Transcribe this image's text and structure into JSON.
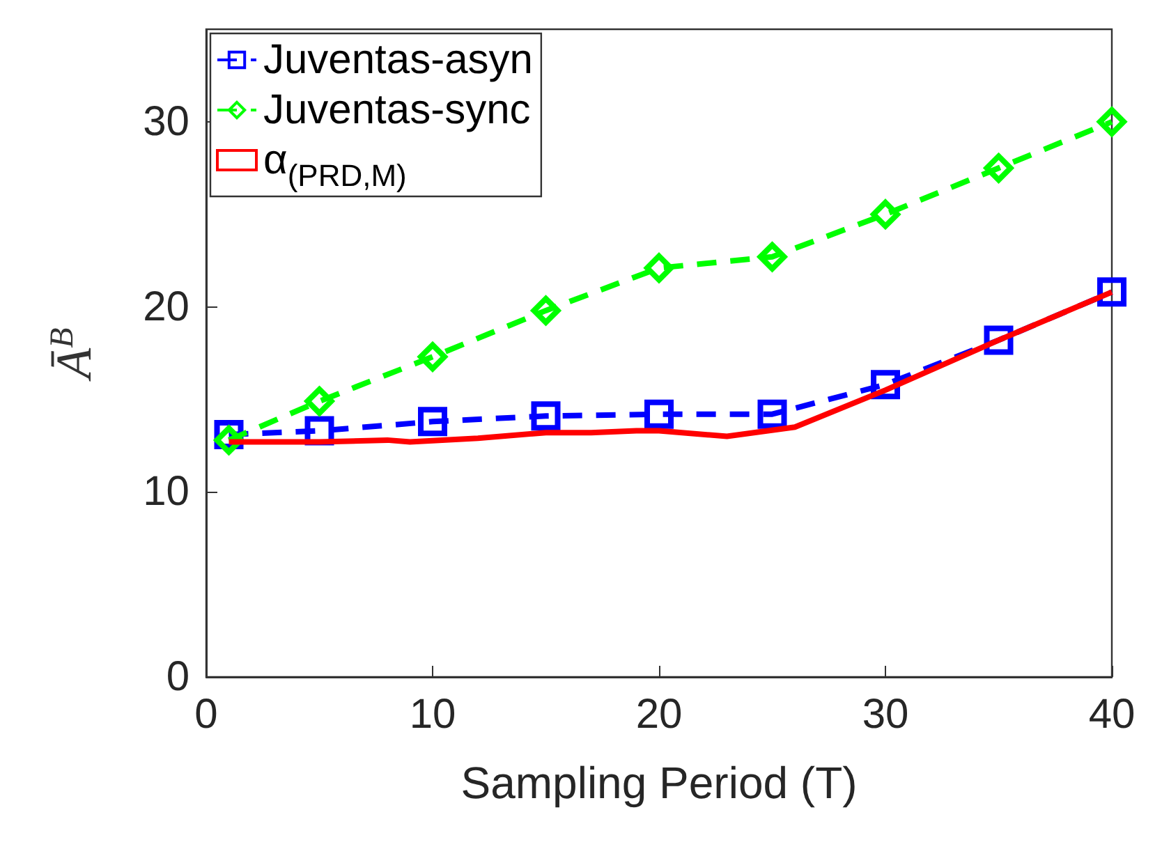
{
  "chart_data": {
    "type": "line",
    "xlabel": "Sampling Period (T)",
    "ylabel": "Ā$^{B}$",
    "xlim": [
      0,
      40
    ],
    "xticks": [
      0,
      10,
      20,
      30,
      40
    ],
    "ylim": [
      0,
      35
    ],
    "yticks": [
      0,
      10,
      20,
      30
    ],
    "grid": false,
    "legend": "top left",
    "series": [
      {
        "name": "Juventas-asyn",
        "color": "#0000ff",
        "marker": "square",
        "line_style": "dashed",
        "x": [
          1,
          5,
          10,
          15,
          20,
          25,
          30,
          35,
          40
        ],
        "values": [
          13.1,
          13.3,
          13.8,
          14.1,
          14.2,
          14.2,
          15.8,
          18.2,
          20.8
        ]
      },
      {
        "name": "Juventas-sync",
        "color": "#00ff00",
        "marker": "diamond",
        "line_style": "dashed",
        "x": [
          1,
          5,
          10,
          15,
          20,
          25,
          30,
          35,
          40
        ],
        "values": [
          12.8,
          14.9,
          17.3,
          19.8,
          22.1,
          22.7,
          25.0,
          27.5,
          30.0
        ]
      },
      {
        "name": "α$_{(PRD,M)}$",
        "color": "#ff0000",
        "marker": "none",
        "line_style": "solid",
        "x": [
          1,
          5,
          8,
          9,
          12,
          15,
          17,
          19,
          20,
          23,
          26,
          30,
          35,
          40
        ],
        "values": [
          12.7,
          12.7,
          12.8,
          12.7,
          12.9,
          13.2,
          13.2,
          13.3,
          13.3,
          13.0,
          13.5,
          15.5,
          18.2,
          20.8
        ]
      }
    ]
  }
}
